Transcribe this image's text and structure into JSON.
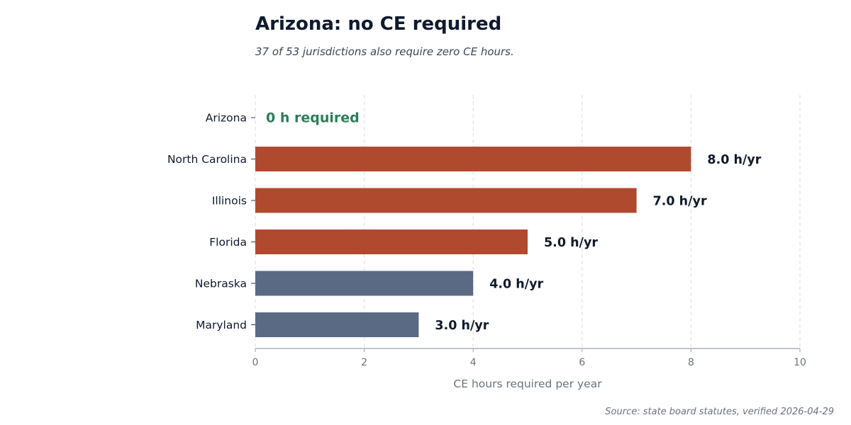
{
  "header": {
    "title": "Arizona: no CE required",
    "subtitle": "37 of 53 jurisdictions also require zero CE hours."
  },
  "footer": {
    "source": "Source: state board statutes, verified 2026-04-29"
  },
  "colors": {
    "highlight_zero": "#2e7d5b",
    "high_bar": "#b04a2f",
    "other_bar": "#5b6a84",
    "grid": "#d9dce1",
    "axis": "#9aa3b0"
  },
  "chart_data": {
    "type": "bar",
    "orientation": "horizontal",
    "categories": [
      "Arizona",
      "North Carolina",
      "Illinois",
      "Florida",
      "Nebraska",
      "Maryland"
    ],
    "values": [
      0,
      8,
      7,
      5,
      4,
      3
    ],
    "value_labels": [
      "0 h required",
      "8.0 h/yr",
      "7.0 h/yr",
      "5.0 h/yr",
      "4.0 h/yr",
      "3.0 h/yr"
    ],
    "bar_groups": [
      "zero",
      "high",
      "high",
      "high",
      "other",
      "other"
    ],
    "xlabel": "CE hours required per year",
    "xlim": [
      0,
      10
    ],
    "xticks": [
      0,
      2,
      4,
      6,
      8,
      10
    ],
    "xtick_labels": [
      "0",
      "2",
      "4",
      "6",
      "8",
      "10"
    ],
    "grid": "vertical dashed",
    "legend": "none"
  }
}
